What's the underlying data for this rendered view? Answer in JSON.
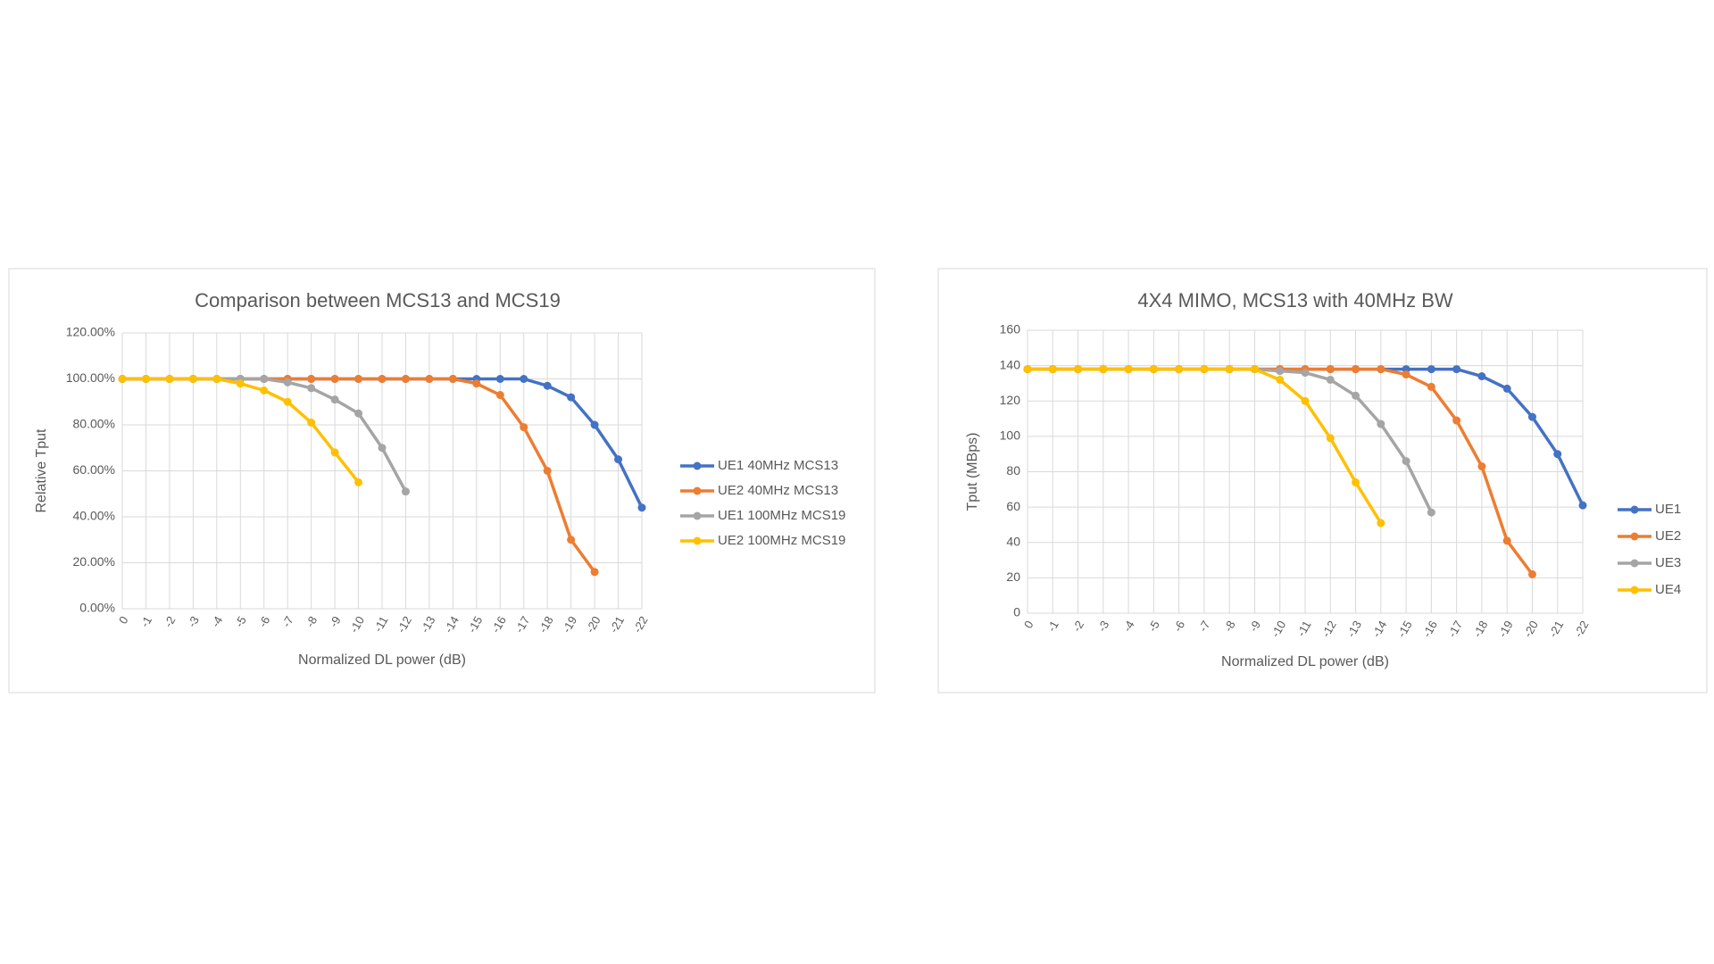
{
  "chart_data": [
    {
      "type": "line",
      "title": "Comparison between MCS13 and MCS19",
      "x_label": "Normalized DL power (dB)",
      "y_label": "Relative Tput",
      "categories": [
        "0",
        "-1",
        "-2",
        "-3",
        "-4",
        "-5",
        "-6",
        "-7",
        "-8",
        "-9",
        "-10",
        "-11",
        "-12",
        "-13",
        "-14",
        "-15",
        "-16",
        "-17",
        "-18",
        "-19",
        "-20",
        "-21",
        "-22"
      ],
      "ylim": [
        0,
        120
      ],
      "yticks": [
        {
          "value": 0,
          "label": "0.00%"
        },
        {
          "value": 20,
          "label": "20.00%"
        },
        {
          "value": 40,
          "label": "40.00%"
        },
        {
          "value": 60,
          "label": "60.00%"
        },
        {
          "value": 80,
          "label": "80.00%"
        },
        {
          "value": 100,
          "label": "100.00%"
        },
        {
          "value": 120,
          "label": "120.00%"
        }
      ],
      "grid": true,
      "legend": "right",
      "series": [
        {
          "name": "UE1 40MHz MCS13",
          "color": "#4472c4",
          "values": [
            100,
            100,
            100,
            100,
            100,
            100,
            100,
            100,
            100,
            100,
            100,
            100,
            100,
            100,
            100,
            100,
            100,
            100,
            97,
            92,
            80,
            65,
            44
          ]
        },
        {
          "name": "UE2 40MHz MCS13",
          "color": "#ed7d31",
          "values": [
            100,
            100,
            100,
            100,
            100,
            100,
            100,
            100,
            100,
            100,
            100,
            100,
            100,
            100,
            100,
            98,
            93,
            79,
            60,
            30,
            16,
            null,
            null
          ]
        },
        {
          "name": "UE1 100MHz MCS19",
          "color": "#a5a5a5",
          "values": [
            100,
            100,
            100,
            100,
            100,
            100,
            100,
            98.5,
            96,
            91,
            85,
            70,
            51,
            null,
            null,
            null,
            null,
            null,
            null,
            null,
            null,
            null,
            null
          ]
        },
        {
          "name": "UE2 100MHz MCS19",
          "color": "#ffc000",
          "values": [
            100,
            100,
            100,
            100,
            100,
            98,
            95,
            90,
            81,
            68,
            55,
            null,
            null,
            null,
            null,
            null,
            null,
            null,
            null,
            null,
            null,
            null,
            null
          ]
        }
      ]
    },
    {
      "type": "line",
      "title": "4X4 MIMO, MCS13 with 40MHz BW",
      "x_label": "Normalized DL power (dB)",
      "y_label": "Tput (MBps)",
      "categories": [
        "0",
        "-1",
        "-2",
        "-3",
        "-4",
        "-5",
        "-6",
        "-7",
        "-8",
        "-9",
        "-10",
        "-11",
        "-12",
        "-13",
        "-14",
        "-15",
        "-16",
        "-17",
        "-18",
        "-19",
        "-20",
        "-21",
        "-22"
      ],
      "ylim": [
        0,
        160
      ],
      "yticks": [
        0,
        20,
        40,
        60,
        80,
        100,
        120,
        140,
        160
      ],
      "grid": true,
      "legend": "right",
      "series": [
        {
          "name": "UE1",
          "color": "#4472c4",
          "values": [
            138,
            138,
            138,
            138,
            138,
            138,
            138,
            138,
            138,
            138,
            138,
            138,
            138,
            138,
            138,
            138,
            138,
            138,
            134,
            127,
            111,
            90,
            61
          ]
        },
        {
          "name": "UE2",
          "color": "#ed7d31",
          "values": [
            138,
            138,
            138,
            138,
            138,
            138,
            138,
            138,
            138,
            138,
            138,
            138,
            138,
            138,
            138,
            135,
            128,
            109,
            83,
            41,
            22,
            null,
            null
          ]
        },
        {
          "name": "UE3",
          "color": "#a5a5a5",
          "values": [
            138,
            138,
            138,
            138,
            138,
            138,
            138,
            138,
            138,
            138,
            137,
            136,
            132,
            123,
            107,
            86,
            57,
            null,
            null,
            null,
            null,
            null,
            null
          ]
        },
        {
          "name": "UE4",
          "color": "#ffc000",
          "values": [
            138,
            138,
            138,
            138,
            138,
            138,
            138,
            138,
            138,
            138,
            132,
            120,
            99,
            74,
            51,
            null,
            null,
            null,
            null,
            null,
            null,
            null,
            null
          ]
        }
      ]
    }
  ]
}
